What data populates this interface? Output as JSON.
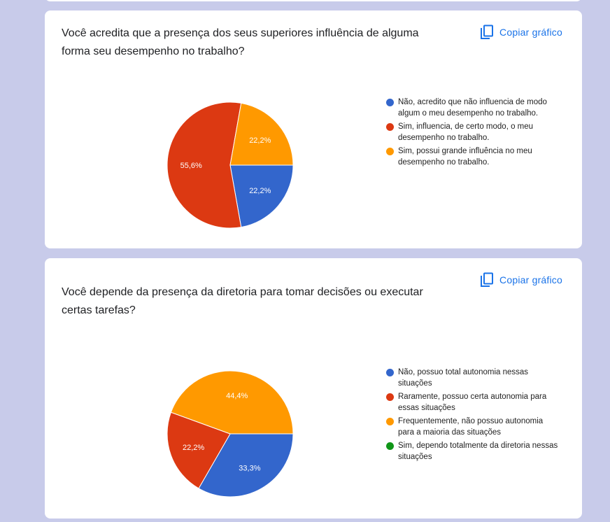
{
  "copy_label": "Copiar gráfico",
  "charts": [
    {
      "question": "Você acredita que a presença dos seus superiores influência de alguma forma seu desempenho no trabalho?",
      "chart_data": {
        "type": "pie",
        "title": "Você acredita que a presença dos seus superiores influência de alguma forma seu desempenho no trabalho?",
        "legend_position": "right",
        "slices": [
          {
            "label": "Não, acredito que não influencia de modo algum o meu desempenho no trabalho.",
            "value": 22.2,
            "display": "22,2%",
            "color": "#3366cc"
          },
          {
            "label": "Sim, influencia, de certo modo, o meu desempenho no trabalho.",
            "value": 55.6,
            "display": "55,6%",
            "color": "#dc3912"
          },
          {
            "label": "Sim, possui grande influência no meu desempenho no trabalho.",
            "value": 22.2,
            "display": "22,2%",
            "color": "#ff9900"
          }
        ]
      }
    },
    {
      "question": "Você depende da presença da diretoria para tomar decisões ou executar certas tarefas?",
      "chart_data": {
        "type": "pie",
        "title": "Você depende da presença da diretoria para tomar decisões ou executar certas tarefas?",
        "legend_position": "right",
        "slices": [
          {
            "label": "Não, possuo total autonomia nessas situações",
            "value": 33.3,
            "display": "33,3%",
            "color": "#3366cc"
          },
          {
            "label": "Raramente, possuo certa autonomia para essas situações",
            "value": 22.2,
            "display": "22,2%",
            "color": "#dc3912"
          },
          {
            "label": "Frequentemente, não possuo autonomia para a maioria das situações",
            "value": 44.4,
            "display": "44,4%",
            "color": "#ff9900"
          },
          {
            "label": "Sim, dependo totalmente da diretoria nessas situações",
            "value": 0,
            "display": "0%",
            "color": "#109618"
          }
        ]
      }
    }
  ]
}
